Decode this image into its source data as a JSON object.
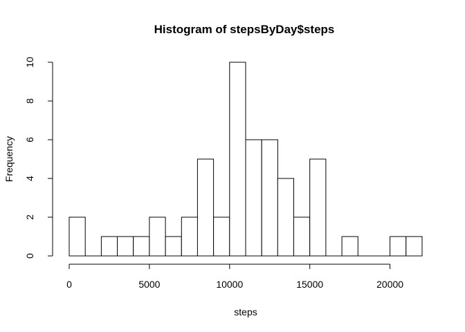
{
  "chart_data": {
    "type": "bar",
    "title": "Histogram of stepsByDay$steps",
    "xlabel": "steps",
    "ylabel": "Frequency",
    "bin_width": 1000,
    "bins": [
      {
        "from": 0,
        "to": 1000,
        "count": 2
      },
      {
        "from": 1000,
        "to": 2000,
        "count": 0
      },
      {
        "from": 2000,
        "to": 3000,
        "count": 1
      },
      {
        "from": 3000,
        "to": 4000,
        "count": 1
      },
      {
        "from": 4000,
        "to": 5000,
        "count": 1
      },
      {
        "from": 5000,
        "to": 6000,
        "count": 2
      },
      {
        "from": 6000,
        "to": 7000,
        "count": 1
      },
      {
        "from": 7000,
        "to": 8000,
        "count": 2
      },
      {
        "from": 8000,
        "to": 9000,
        "count": 5
      },
      {
        "from": 9000,
        "to": 10000,
        "count": 2
      },
      {
        "from": 10000,
        "to": 11000,
        "count": 10
      },
      {
        "from": 11000,
        "to": 12000,
        "count": 6
      },
      {
        "from": 12000,
        "to": 13000,
        "count": 6
      },
      {
        "from": 13000,
        "to": 14000,
        "count": 4
      },
      {
        "from": 14000,
        "to": 15000,
        "count": 2
      },
      {
        "from": 15000,
        "to": 16000,
        "count": 5
      },
      {
        "from": 16000,
        "to": 17000,
        "count": 0
      },
      {
        "from": 17000,
        "to": 18000,
        "count": 1
      },
      {
        "from": 18000,
        "to": 19000,
        "count": 0
      },
      {
        "from": 19000,
        "to": 20000,
        "count": 0
      },
      {
        "from": 20000,
        "to": 21000,
        "count": 1
      },
      {
        "from": 21000,
        "to": 22000,
        "count": 1
      }
    ],
    "xlim": [
      0,
      22000
    ],
    "ylim": [
      0,
      10
    ],
    "x_ticks": [
      0,
      5000,
      10000,
      15000,
      20000
    ],
    "y_ticks": [
      0,
      2,
      4,
      6,
      8,
      10
    ],
    "grid": false,
    "legend": "none",
    "colors": {
      "bar_fill": "#ffffff",
      "bar_stroke": "#000000",
      "axis": "#000000"
    }
  }
}
